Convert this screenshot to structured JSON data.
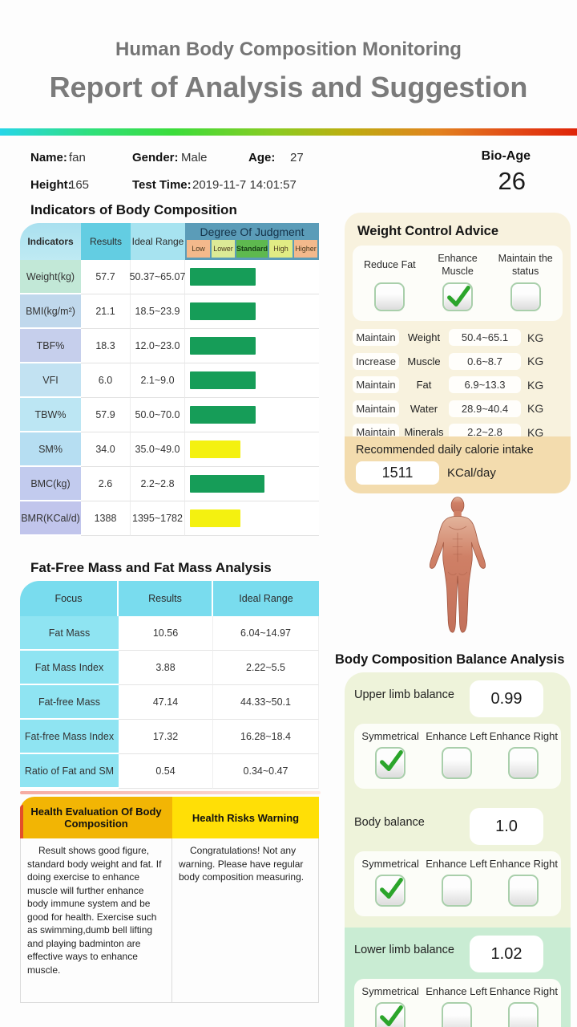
{
  "header": {
    "subtitle": "Human Body Composition Monitoring",
    "title": "Report of Analysis and Suggestion"
  },
  "patient": {
    "name_label": "Name:",
    "name": "fan",
    "gender_label": "Gender:",
    "gender": "Male",
    "age_label": "Age:",
    "age": "27",
    "height_label": "Height:",
    "height": "165",
    "test_time_label": "Test Time:",
    "test_time": "2019-11-7 14:01:57",
    "bio_age_label": "Bio-Age",
    "bio_age": "26"
  },
  "indicators_table": {
    "title": "Indicators of Body Composition",
    "headers": {
      "indicators": "Indicators",
      "results": "Results",
      "ideal_range": "Ideal Range",
      "judgment": "Degree Of Judgment"
    },
    "judgment_levels": [
      "Low",
      "Lower",
      "Standard",
      "High",
      "Higher"
    ],
    "judgment_colors": [
      "#f3b98c",
      "#dcea96",
      "#5eb94f",
      "#e1ec84",
      "#f3b98c"
    ],
    "bar_styles": {
      "standard": {
        "color": "#169d58",
        "width_pct": 51
      },
      "standard_high": {
        "color": "#169d58",
        "width_pct": 58
      },
      "low": {
        "color": "#f4f110",
        "width_pct": 39
      }
    },
    "rows": [
      {
        "indicator": "Weight(kg)",
        "result": "57.7",
        "range": "50.37~65.07",
        "status": "standard"
      },
      {
        "indicator": "BMI(kg/m²)",
        "result": "21.1",
        "range": "18.5~23.9",
        "status": "standard"
      },
      {
        "indicator": "TBF%",
        "result": "18.3",
        "range": "12.0~23.0",
        "status": "standard"
      },
      {
        "indicator": "VFI",
        "result": "6.0",
        "range": "2.1~9.0",
        "status": "standard"
      },
      {
        "indicator": "TBW%",
        "result": "57.9",
        "range": "50.0~70.0",
        "status": "standard"
      },
      {
        "indicator": "SM%",
        "result": "34.0",
        "range": "35.0~49.0",
        "status": "low"
      },
      {
        "indicator": "BMC(kg)",
        "result": "2.6",
        "range": "2.2~2.8",
        "status": "standard_high"
      },
      {
        "indicator": "BMR(KCal/d)",
        "result": "1388",
        "range": "1395~1782",
        "status": "low"
      }
    ]
  },
  "weight_control": {
    "title": "Weight Control Advice",
    "goals": [
      {
        "label": "Reduce Fat",
        "checked": false
      },
      {
        "label": "Enhance Muscle",
        "checked": true
      },
      {
        "label": "Maintain the status",
        "checked": false
      }
    ],
    "rows": [
      {
        "action": "Maintain",
        "item": "Weight",
        "range": "50.4~65.1",
        "unit": "KG"
      },
      {
        "action": "Increase",
        "item": "Muscle",
        "range": "0.6~8.7",
        "unit": "KG"
      },
      {
        "action": "Maintain",
        "item": "Fat",
        "range": "6.9~13.3",
        "unit": "KG"
      },
      {
        "action": "Maintain",
        "item": "Water",
        "range": "28.9~40.4",
        "unit": "KG"
      },
      {
        "action": "Maintain",
        "item": "Minerals",
        "range": "2.2~2.8",
        "unit": "KG"
      }
    ],
    "calorie": {
      "label": "Recommended daily calorie intake",
      "value": "1511",
      "unit": "KCal/day"
    }
  },
  "fat_table": {
    "title": "Fat-Free Mass and Fat Mass Analysis",
    "headers": [
      "Focus",
      "Results",
      "Ideal Range"
    ],
    "rows": [
      {
        "focus": "Fat Mass",
        "result": "10.56",
        "range": "6.04~14.97"
      },
      {
        "focus": "Fat Mass Index",
        "result": "3.88",
        "range": "2.22~5.5"
      },
      {
        "focus": "Fat-free Mass",
        "result": "47.14",
        "range": "44.33~50.1"
      },
      {
        "focus": "Fat-free Mass Index",
        "result": "17.32",
        "range": "16.28~18.4"
      },
      {
        "focus": "Ratio of Fat and SM",
        "result": "0.54",
        "range": "0.34~0.47"
      }
    ]
  },
  "health_eval": {
    "left_header": "Health Evaluation Of Body Composition",
    "right_header": "Health Risks Warning",
    "left_text": "Result shows good figure, standard body weight and fat. If doing exercise to enhance muscle will further enhance body immune system and be good for health. Exercise such as swimming,dumb bell lifting and playing badminton are effective ways to enhance muscle.",
    "right_text": "Congratulations!  Not any warning. Please have regular body composition measuring."
  },
  "balance": {
    "title": "Body Composition Balance Analysis",
    "option_labels": [
      "Symmetrical",
      "Enhance Left",
      "Enhance Right"
    ],
    "sections": [
      {
        "label": "Upper limb balance",
        "value": "0.99",
        "checked_index": 0
      },
      {
        "label": "Body balance",
        "value": "1.0",
        "checked_index": 0
      },
      {
        "label": "Lower limb balance",
        "value": "1.02",
        "checked_index": 0
      }
    ]
  }
}
